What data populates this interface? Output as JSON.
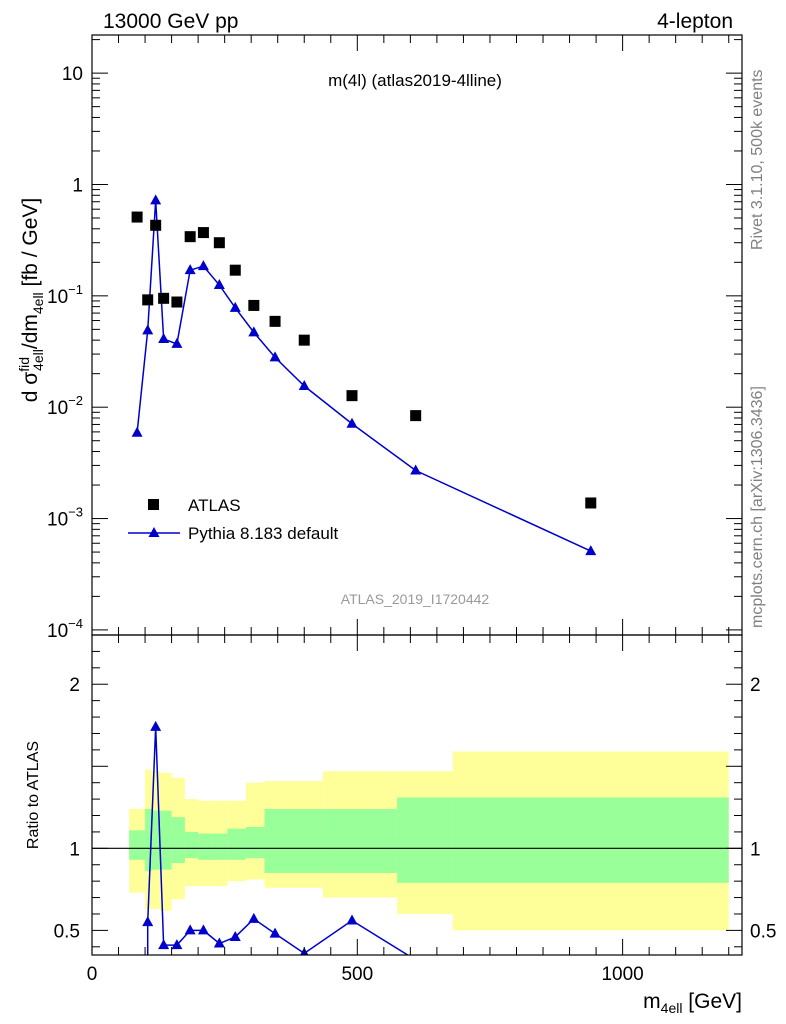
{
  "header": {
    "left": "13000 GeV pp",
    "right": "4-lepton"
  },
  "side": {
    "rivet": "Rivet 3.1.10,  500k events",
    "mcplots": "mcplots.cern.ch [arXiv:1306.3436]"
  },
  "chart_data": [
    {
      "type": "scatter",
      "title": "m(4l) (atlas2019-4lline)",
      "watermark": "ATLAS_2019_I1720442",
      "ylabel": "d σ^{fid}_{4ell}/dm_{4ell} [fb / GeV]",
      "ylabel_parts": {
        "a": "d σ",
        "b": "fid",
        "c": "d",
        "d": "4ell",
        "e": "/dm",
        "f": "4ell",
        "g": " [fb / GeV]"
      },
      "yscale": "log",
      "ylim": [
        0.0001,
        20
      ],
      "xlim": [
        0,
        1225
      ],
      "y_ticks": [
        {
          "value": 10,
          "base": "10",
          "exp": ""
        },
        {
          "value": 1,
          "base": "1",
          "exp": ""
        },
        {
          "value": 0.1,
          "base": "10",
          "exp": "−1"
        },
        {
          "value": 0.01,
          "base": "10",
          "exp": "−2"
        },
        {
          "value": 0.001,
          "base": "10",
          "exp": "−3"
        },
        {
          "value": 0.0001,
          "base": "10",
          "exp": "−4"
        }
      ],
      "legend_position": "bottom-left",
      "series": [
        {
          "name": "ATLAS",
          "marker": "square",
          "color": "#000000",
          "x": [
            85,
            105,
            120,
            135,
            160,
            185,
            210,
            240,
            270,
            305,
            345,
            400,
            490,
            610,
            940
          ],
          "y": [
            0.51,
            0.092,
            0.43,
            0.095,
            0.088,
            0.34,
            0.37,
            0.3,
            0.17,
            0.082,
            0.059,
            0.04,
            0.0127,
            0.0084,
            0.00138
          ]
        },
        {
          "name": "Pythia 8.183 default",
          "marker": "triangle",
          "color": "#0000cc",
          "x": [
            85,
            105,
            120,
            135,
            160,
            185,
            210,
            240,
            270,
            305,
            345,
            400,
            490,
            610,
            940
          ],
          "y": [
            0.0059,
            0.049,
            0.72,
            0.041,
            0.037,
            0.17,
            0.185,
            0.125,
            0.078,
            0.047,
            0.028,
            0.0155,
            0.0071,
            0.0027,
            0.00051
          ]
        }
      ]
    },
    {
      "type": "line",
      "ylabel": "Ratio to ATLAS",
      "xlabel": "m_{4ell} [GeV]",
      "xlabel_parts": {
        "a": "m",
        "b": "4ell",
        "c": " [GeV]"
      },
      "xlim": [
        0,
        1225
      ],
      "ylim": [
        0.35,
        2.3
      ],
      "x_ticks": [
        "0",
        "500",
        "1000"
      ],
      "y_ticks": [
        "0.5",
        "1",
        "2"
      ],
      "reference_line": 1,
      "bands": {
        "stat_color": "#99ff99",
        "total_color": "#ffff99",
        "edges": [
          70,
          100,
          112,
          128,
          150,
          175,
          200,
          225,
          255,
          290,
          325,
          435,
          575,
          680,
          1200
        ],
        "total_lo": [
          0.73,
          0.63,
          0.63,
          0.62,
          0.69,
          0.77,
          0.77,
          0.77,
          0.8,
          0.81,
          0.76,
          0.7,
          0.6,
          0.5
        ],
        "total_hi": [
          1.24,
          1.48,
          1.47,
          1.46,
          1.43,
          1.3,
          1.29,
          1.29,
          1.29,
          1.4,
          1.41,
          1.47,
          1.47,
          1.59
        ],
        "stat_lo": [
          0.93,
          0.86,
          0.87,
          0.87,
          0.91,
          0.94,
          0.93,
          0.93,
          0.93,
          0.94,
          0.85,
          0.85,
          0.79,
          0.79
        ],
        "stat_hi": [
          1.11,
          1.24,
          1.23,
          1.23,
          1.19,
          1.1,
          1.09,
          1.09,
          1.12,
          1.13,
          1.24,
          1.24,
          1.31,
          1.31
        ]
      },
      "series": [
        {
          "name": "Pythia 8.183 default",
          "color": "#0000cc",
          "x": [
            105,
            120,
            135,
            160,
            185,
            210,
            240,
            270,
            305,
            345,
            400,
            490,
            610
          ],
          "y": [
            0.55,
            1.74,
            0.41,
            0.41,
            0.5,
            0.5,
            0.42,
            0.46,
            0.57,
            0.48,
            0.36,
            0.56,
            0.32
          ]
        }
      ]
    }
  ]
}
